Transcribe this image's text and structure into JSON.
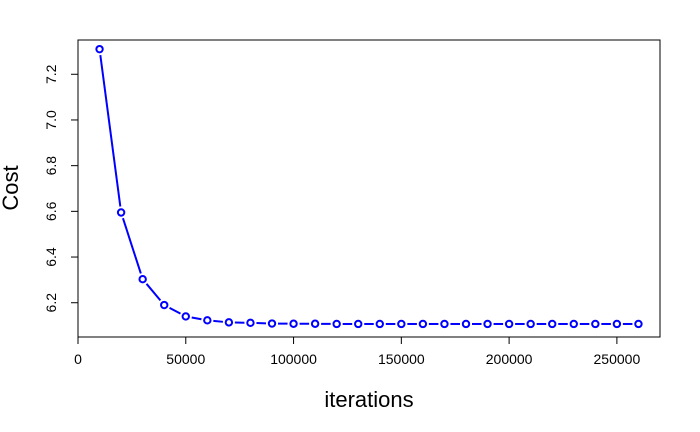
{
  "chart_data": {
    "type": "line",
    "title": "",
    "xlabel": "iterations",
    "ylabel": "Cost",
    "x_ticks": [
      0,
      50000,
      100000,
      150000,
      200000,
      250000
    ],
    "x_tick_labels": [
      "0",
      "50000",
      "100000",
      "150000",
      "200000",
      "250000"
    ],
    "y_ticks": [
      6.2,
      6.4,
      6.6,
      6.8,
      7.0,
      7.2
    ],
    "y_tick_labels": [
      "6.2",
      "6.4",
      "6.6",
      "6.8",
      "7.0",
      "7.2"
    ],
    "xlim": [
      0,
      270000
    ],
    "ylim": [
      6.05,
      7.35
    ],
    "grid": false,
    "legend": "none",
    "series_color": "#0000ff",
    "marker": "open-circle",
    "series": [
      {
        "x": [
          10000,
          20000,
          30000,
          40000,
          50000,
          60000,
          70000,
          80000,
          90000,
          100000,
          110000,
          120000,
          130000,
          140000,
          150000,
          160000,
          170000,
          180000,
          190000,
          200000,
          210000,
          220000,
          230000,
          240000,
          250000,
          260000
        ],
        "y": [
          7.31,
          6.595,
          6.303,
          6.19,
          6.14,
          6.123,
          6.114,
          6.112,
          6.109,
          6.108,
          6.108,
          6.107,
          6.107,
          6.107,
          6.107,
          6.107,
          6.107,
          6.107,
          6.107,
          6.107,
          6.107,
          6.107,
          6.107,
          6.107,
          6.107,
          6.107
        ]
      }
    ]
  }
}
